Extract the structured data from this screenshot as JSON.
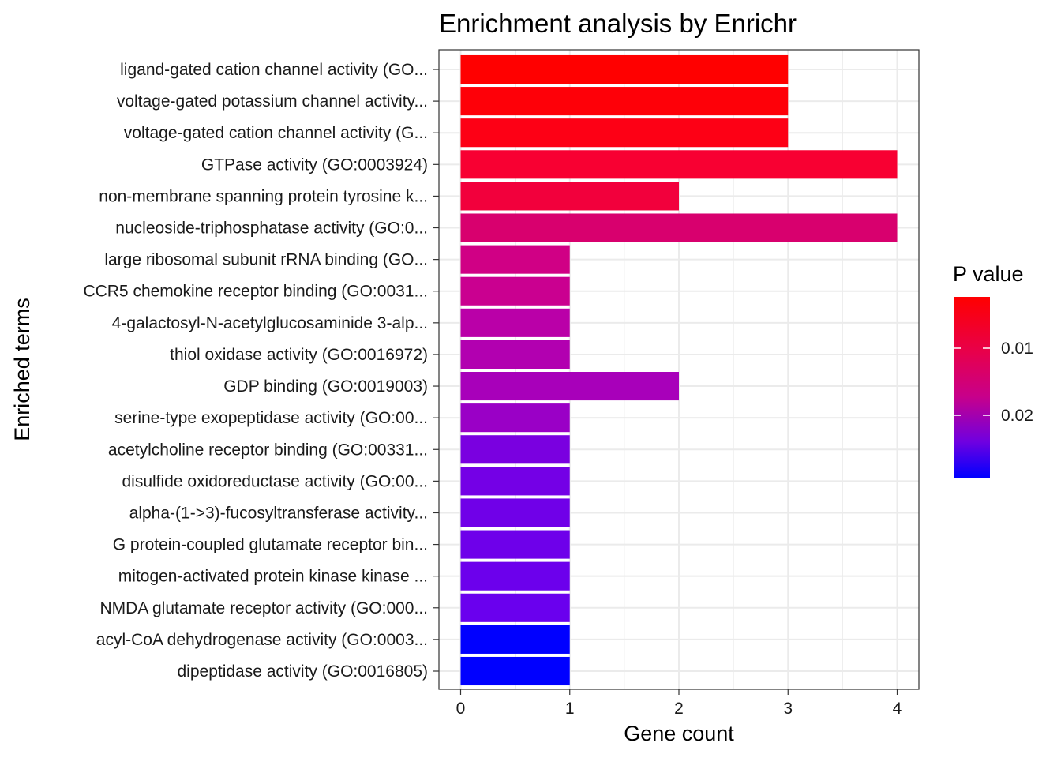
{
  "chart_data": {
    "type": "bar",
    "orientation": "horizontal",
    "title": "Enrichment analysis by Enrichr",
    "xlabel": "Gene count",
    "ylabel": "Enriched terms",
    "xlim": [
      0,
      4
    ],
    "x_ticks": [
      "0",
      "1",
      "2",
      "3",
      "4"
    ],
    "grid": true,
    "legend": {
      "title": "P value",
      "position": "right",
      "ticks": [
        "0.01",
        "0.02"
      ],
      "color_high": "#FF0000",
      "color_low": "#0000FF"
    },
    "categories": [
      "ligand-gated cation channel activity (GO...",
      "voltage-gated potassium channel activity...",
      "voltage-gated cation channel activity (G...",
      "GTPase activity (GO:0003924)",
      "non-membrane spanning protein tyrosine k...",
      "nucleoside-triphosphatase activity (GO:0...",
      "large ribosomal subunit rRNA binding (GO...",
      "CCR5 chemokine receptor binding (GO:0031...",
      "4-galactosyl-N-acetylglucosaminide 3-alp...",
      "thiol oxidase activity (GO:0016972)",
      "GDP binding (GO:0019003)",
      "serine-type exopeptidase activity (GO:00...",
      "acetylcholine receptor binding (GO:00331...",
      "disulfide oxidoreductase activity (GO:00...",
      "alpha-(1->3)-fucosyltransferase activity...",
      "G protein-coupled glutamate receptor bin...",
      "mitogen-activated protein kinase kinase ...",
      "NMDA glutamate receptor activity (GO:000...",
      "acyl-CoA dehydrogenase activity (GO:0003...",
      "dipeptidase activity (GO:0016805)"
    ],
    "values": [
      3,
      3,
      3,
      4,
      2,
      4,
      1,
      1,
      1,
      1,
      2,
      1,
      1,
      1,
      1,
      1,
      1,
      1,
      1,
      1
    ],
    "bar_colors": [
      "#FF0000",
      "#FE0008",
      "#FD0015",
      "#F80032",
      "#F2003C",
      "#D8006E",
      "#D00085",
      "#CA0090",
      "#BA00A8",
      "#B200B0",
      "#A800BA",
      "#9A00C6",
      "#7A00E0",
      "#7400E6",
      "#7000E8",
      "#6E00EA",
      "#6C00EC",
      "#6A00EE",
      "#0000FF",
      "#0000FF"
    ]
  }
}
